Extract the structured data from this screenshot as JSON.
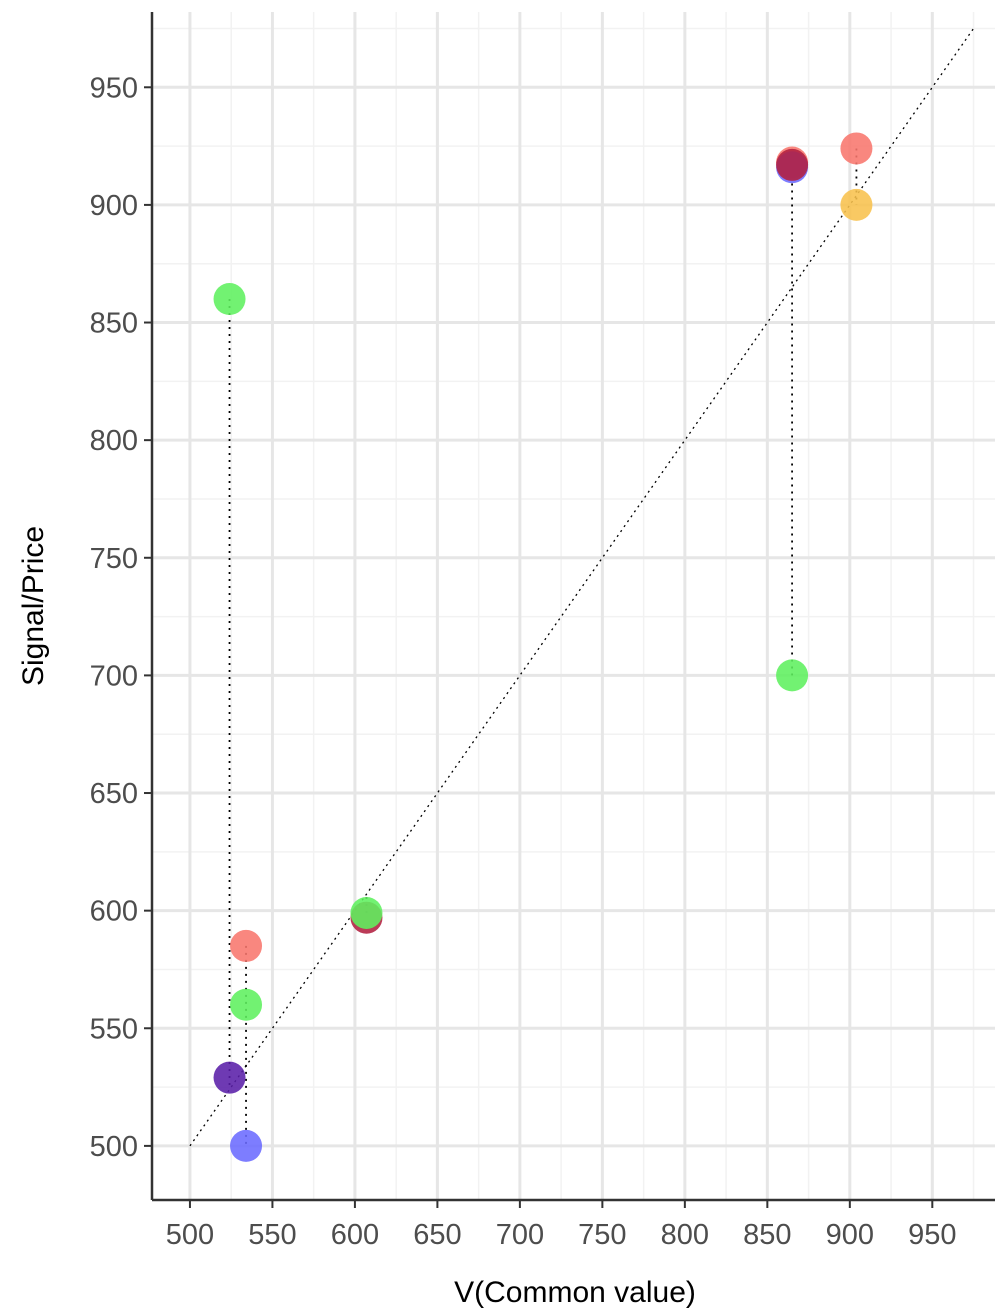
{
  "chart_data": {
    "type": "scatter",
    "title": "",
    "xlabel": "V(Common value)",
    "ylabel": "Signal/Price",
    "xlim": [
      477,
      988
    ],
    "ylim": [
      477,
      982
    ],
    "x_ticks": [
      500,
      550,
      600,
      650,
      700,
      750,
      800,
      850,
      900,
      950
    ],
    "y_ticks": [
      500,
      550,
      600,
      650,
      700,
      750,
      800,
      850,
      900,
      950
    ],
    "grid": true,
    "legend": "none",
    "reference_line": {
      "style": "dotted",
      "from": [
        500,
        500
      ],
      "to": [
        975,
        975
      ]
    },
    "colors": {
      "red": "#f8766d",
      "green": "#5ef05e",
      "blue": "#6b6bff",
      "orange": "#f8c24d",
      "purple": "#5a1fa8",
      "crimson": "#b22040"
    },
    "points": [
      {
        "x": 524,
        "y": 860,
        "color": "green"
      },
      {
        "x": 524,
        "y": 529,
        "color": "purple"
      },
      {
        "x": 534,
        "y": 585,
        "color": "red"
      },
      {
        "x": 534,
        "y": 560,
        "color": "green"
      },
      {
        "x": 534,
        "y": 500,
        "color": "blue"
      },
      {
        "x": 607,
        "y": 597,
        "color": "crimson"
      },
      {
        "x": 607,
        "y": 599,
        "color": "green"
      },
      {
        "x": 865,
        "y": 918,
        "color": "red"
      },
      {
        "x": 865,
        "y": 916,
        "color": "blue"
      },
      {
        "x": 865,
        "y": 917,
        "color": "crimson"
      },
      {
        "x": 865,
        "y": 700,
        "color": "green"
      },
      {
        "x": 904,
        "y": 924,
        "color": "red"
      },
      {
        "x": 904,
        "y": 900,
        "color": "orange"
      }
    ],
    "dotted_segments": [
      {
        "x": 524,
        "y_from": 860,
        "y_to": 524
      },
      {
        "x": 534,
        "y_from": 585,
        "y_to": 500
      },
      {
        "x": 607,
        "y_from": 599,
        "y_to": 607
      },
      {
        "x": 865,
        "y_from": 918,
        "y_to": 700
      },
      {
        "x": 904,
        "y_from": 924,
        "y_to": 900
      }
    ]
  }
}
